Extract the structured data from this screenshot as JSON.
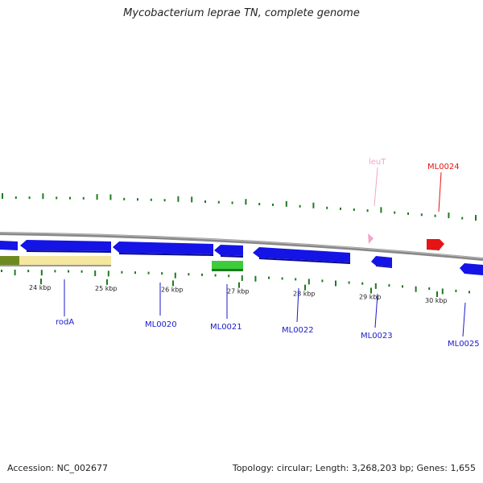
{
  "title": "Mycobacterium leprae TN, complete genome",
  "colors": {
    "cds": "#1414e6",
    "cds_label": "#1a1acc",
    "rrna": "#e61414",
    "trna": "#f0a6c8",
    "misc": "#3ccc3c",
    "gc_tick": "#1f7a1f",
    "backbone": "#888888",
    "region_yellow": "#f5e6a0",
    "region_olive": "#6e8a1f"
  },
  "scale": {
    "ticks": [
      {
        "kbp": 24,
        "label": "24 kbp"
      },
      {
        "kbp": 25,
        "label": "25 kbp"
      },
      {
        "kbp": 26,
        "label": "26 kbp"
      },
      {
        "kbp": 27,
        "label": "27 kbp"
      },
      {
        "kbp": 28,
        "label": "28 kbp"
      },
      {
        "kbp": 29,
        "label": "29 kbp"
      },
      {
        "kbp": 30,
        "label": "30 kbp"
      }
    ]
  },
  "features": {
    "outer": [
      {
        "name": "leuT",
        "type": "tRNA",
        "strand": "+"
      },
      {
        "name": "ML0024",
        "type": "rRNA",
        "strand": "+"
      }
    ],
    "inner": [
      {
        "name": "rodA",
        "type": "CDS",
        "strand": "-"
      },
      {
        "name": "ML0020",
        "type": "CDS",
        "strand": "-"
      },
      {
        "name": "ML0021",
        "type": "CDS",
        "strand": "-"
      },
      {
        "name": "ML0022",
        "type": "CDS",
        "strand": "-"
      },
      {
        "name": "ML0023",
        "type": "CDS",
        "strand": "-"
      },
      {
        "name": "ML0025",
        "type": "CDS",
        "strand": "-"
      }
    ]
  },
  "footer": {
    "accession": "Accession: NC_002677",
    "stats": "Topology: circular; Length: 3,268,203 bp; Genes: 1,655"
  }
}
